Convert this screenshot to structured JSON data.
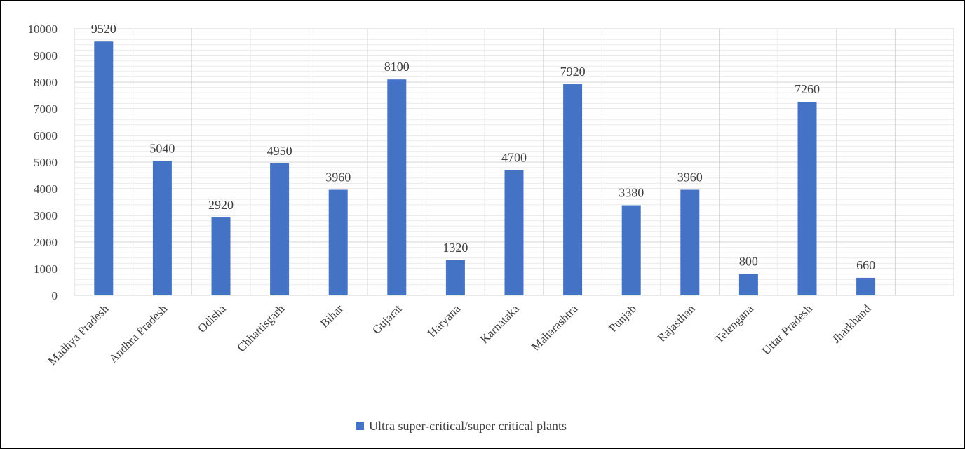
{
  "chart_data": {
    "type": "bar",
    "title": "",
    "xlabel": "",
    "ylabel": "",
    "categories": [
      "Madhya Pradesh",
      "Andhra Pradesh",
      "Odisha",
      "Chhattisgarh",
      "Bihar",
      "Gujarat",
      "Haryana",
      "Karnataka",
      "Maharashtra",
      "Punjab",
      "Rajasthan",
      "Telengana",
      "Uttar Pradesh",
      "Jharkhand",
      ""
    ],
    "series": [
      {
        "name": "Ultra super-critical/super critical plants",
        "color": "#4472c4",
        "values": [
          9520,
          5040,
          2920,
          4950,
          3960,
          8100,
          1320,
          4700,
          7920,
          3380,
          3960,
          800,
          7260,
          660,
          null
        ]
      }
    ],
    "ylim": [
      0,
      10000
    ],
    "yticks": [
      "0",
      "1000",
      "2000",
      "3000",
      "4000",
      "5000",
      "6000",
      "7000",
      "8000",
      "9000",
      "10000"
    ],
    "grid": true,
    "legend_position": "bottom"
  }
}
